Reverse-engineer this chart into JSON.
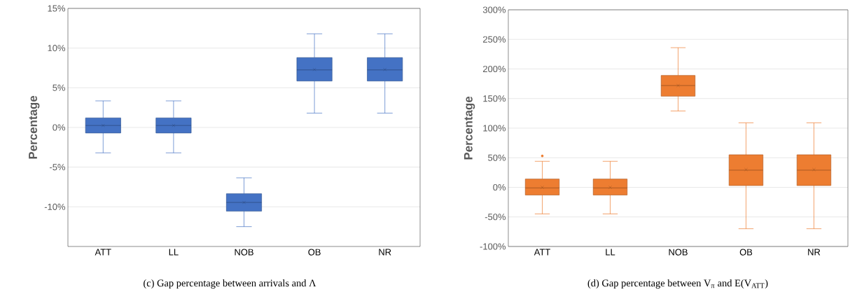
{
  "chart_data": [
    {
      "type": "box",
      "categories": [
        "ATT",
        "LL",
        "NOB",
        "OB",
        "NR"
      ],
      "color": "#4472c4",
      "ylabel": "Percentage",
      "boxes": [
        {
          "low": -3.2,
          "q1": -0.7,
          "median": 0.25,
          "q3": 1.2,
          "high": 3.35,
          "mean": 0.25
        },
        {
          "low": -3.2,
          "q1": -0.7,
          "median": 0.25,
          "q3": 1.2,
          "high": 3.35,
          "mean": 0.25
        },
        {
          "low": -12.5,
          "q1": -10.55,
          "median": -9.45,
          "q3": -8.35,
          "high": -6.35,
          "mean": -9.45
        },
        {
          "low": 1.8,
          "q1": 5.85,
          "median": 7.25,
          "q3": 8.8,
          "high": 11.8,
          "mean": 7.3
        },
        {
          "low": 1.8,
          "q1": 5.85,
          "median": 7.25,
          "q3": 8.8,
          "high": 11.8,
          "mean": 7.3
        }
      ],
      "ylim": [
        -15,
        15
      ],
      "yticks": [
        {
          "value": -10,
          "label": "-10%"
        },
        {
          "value": -5,
          "label": "-5%"
        },
        {
          "value": 0,
          "label": "0%"
        },
        {
          "value": 5,
          "label": "5%"
        },
        {
          "value": 10,
          "label": "10%"
        },
        {
          "value": 15,
          "label": "15%"
        }
      ],
      "grid": "y",
      "marker": "cross",
      "annotations": [
        "(c) Gap percentage between arrivals and Λ"
      ]
    },
    {
      "type": "box",
      "categories": [
        "ATT",
        "LL",
        "NOB",
        "OB",
        "NR"
      ],
      "color": "#ed7d31",
      "ylabel": "Percentage",
      "boxes": [
        {
          "low": -45,
          "q1": -13,
          "median": -1,
          "q3": 14,
          "high": 44,
          "mean": 0,
          "outliers": [
            53
          ]
        },
        {
          "low": -45,
          "q1": -13,
          "median": -1,
          "q3": 14,
          "high": 44,
          "mean": 0
        },
        {
          "low": 129,
          "q1": 154,
          "median": 172,
          "q3": 189,
          "high": 236,
          "mean": 172
        },
        {
          "low": -70,
          "q1": 3,
          "median": 29,
          "q3": 55,
          "high": 109,
          "mean": 30
        },
        {
          "low": -70,
          "q1": 3,
          "median": 29,
          "q3": 55,
          "high": 109,
          "mean": 30
        }
      ],
      "ylim": [
        -100,
        300
      ],
      "yticks": [
        {
          "value": -100,
          "label": "-100%"
        },
        {
          "value": -50,
          "label": "-50%"
        },
        {
          "value": 0,
          "label": "0%"
        },
        {
          "value": 50,
          "label": "50%"
        },
        {
          "value": 100,
          "label": "100%"
        },
        {
          "value": 150,
          "label": "150%"
        },
        {
          "value": 200,
          "label": "200%"
        },
        {
          "value": 250,
          "label": "250%"
        },
        {
          "value": 300,
          "label": "300%"
        }
      ],
      "grid": "y",
      "marker": "cross",
      "annotations": [
        "(d) Gap percentage between V$_{π}$ and E(V$_{ATT}$)"
      ]
    }
  ]
}
